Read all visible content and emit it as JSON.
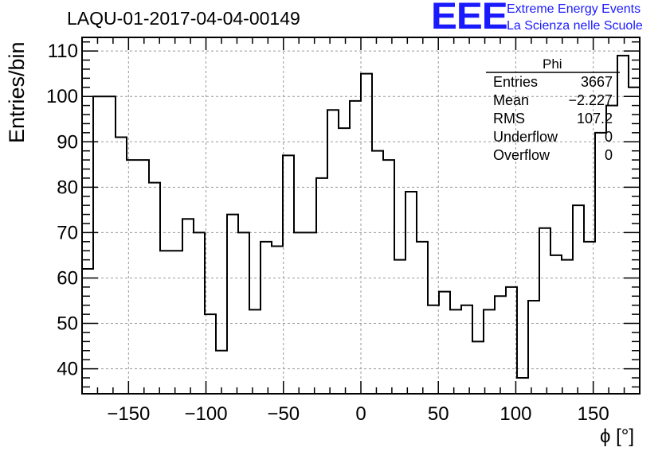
{
  "title": "LAQU-01-2017-04-04-00149",
  "logo": {
    "mark": "EEE",
    "line1": "Extreme Energy Events",
    "line2": "La Scienza nelle Scuole",
    "color": "#1a1aff"
  },
  "stats": {
    "name": "Phi",
    "rows": [
      {
        "label": "Entries",
        "value": "3667"
      },
      {
        "label": "Mean",
        "value": "−2.227"
      },
      {
        "label": "RMS",
        "value": "107.2"
      },
      {
        "label": "Underflow",
        "value": "0"
      },
      {
        "label": "Overflow",
        "value": "0"
      }
    ]
  },
  "chart_data": {
    "type": "histogram",
    "title": "LAQU-01-2017-04-04-00149",
    "xlabel": "ϕ [°]",
    "ylabel": "Entries/bin",
    "xlim": [
      -180,
      180
    ],
    "ylim": [
      34.5,
      113
    ],
    "bin_width": 7.2,
    "xticks": [
      -150,
      -100,
      -50,
      0,
      50,
      100,
      150
    ],
    "xtick_labels": [
      "−150",
      "−100",
      "−50",
      "0",
      "50",
      "100",
      "150"
    ],
    "yticks": [
      40,
      50,
      60,
      70,
      80,
      90,
      100,
      110
    ],
    "ytick_labels": [
      "40",
      "50",
      "60",
      "70",
      "80",
      "90",
      "100",
      "110"
    ],
    "grid": true,
    "line_color": "#000000",
    "values": [
      62,
      100,
      100,
      91,
      86,
      86,
      81,
      66,
      66,
      73,
      70,
      52,
      44,
      74,
      70,
      53,
      68,
      67,
      87,
      70,
      70,
      82,
      97,
      93,
      99,
      105,
      88,
      86,
      64,
      79,
      68,
      54,
      57,
      53,
      54,
      46,
      53,
      56,
      58,
      38,
      55,
      71,
      65,
      64,
      76,
      68,
      92,
      98,
      109,
      102
    ]
  }
}
